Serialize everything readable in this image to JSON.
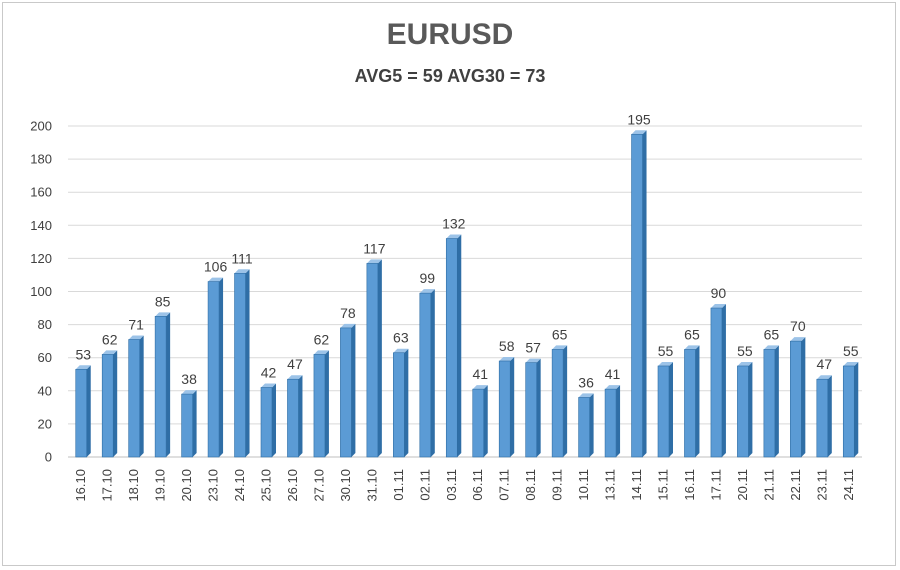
{
  "chart_data": {
    "type": "bar",
    "title": "EURUSD",
    "subtitle": "AVG5 = 59 AVG30 = 73",
    "xlabel": "",
    "ylabel": "",
    "ylim": [
      0,
      200
    ],
    "yticks": [
      0,
      20,
      40,
      60,
      80,
      100,
      120,
      140,
      160,
      180,
      200
    ],
    "grid": true,
    "bar_color": "#5b9bd5",
    "bar_edge_color": "#2e6da4",
    "categories": [
      "16.10",
      "17.10",
      "18.10",
      "19.10",
      "20.10",
      "23.10",
      "24.10",
      "25.10",
      "26.10",
      "27.10",
      "30.10",
      "31.10",
      "01.11",
      "02.11",
      "03.11",
      "06.11",
      "07.11",
      "08.11",
      "09.11",
      "10.11",
      "13.11",
      "14.11",
      "15.11",
      "16.11",
      "17.11",
      "20.11",
      "21.11",
      "22.11",
      "23.11",
      "24.11"
    ],
    "values": [
      53,
      62,
      71,
      85,
      38,
      106,
      111,
      42,
      47,
      62,
      78,
      117,
      63,
      99,
      132,
      41,
      58,
      57,
      65,
      36,
      41,
      195,
      55,
      65,
      90,
      55,
      65,
      70,
      47,
      55
    ]
  }
}
